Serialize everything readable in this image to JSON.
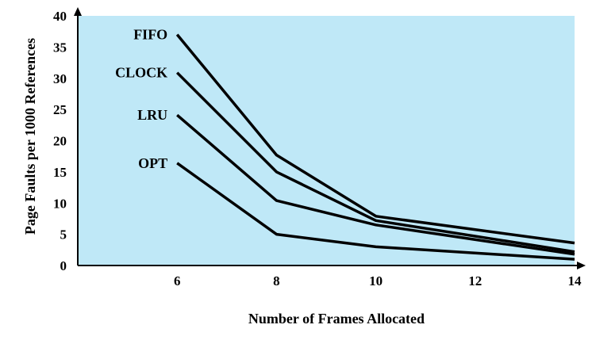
{
  "colors": {
    "plot_background": "#bfe8f7",
    "line": "#000000",
    "axis": "#000000"
  },
  "chart_data": {
    "type": "line",
    "title": "",
    "xlabel": "Number of Frames Allocated",
    "ylabel": "Page Faults per 1000 References",
    "xlim": [
      4,
      14
    ],
    "ylim": [
      0,
      40
    ],
    "xticks": [
      6,
      8,
      10,
      12,
      14
    ],
    "yticks": [
      0,
      5,
      10,
      15,
      20,
      25,
      30,
      35,
      40
    ],
    "grid": false,
    "legend": "inline labels at left end of lines",
    "x": [
      6,
      8,
      10,
      14
    ],
    "series": [
      {
        "name": "FIFO",
        "values": [
          37,
          17.7,
          7.9,
          3.6
        ]
      },
      {
        "name": "CLOCK",
        "values": [
          30.9,
          15,
          7.2,
          2.2
        ]
      },
      {
        "name": "LRU",
        "values": [
          24.1,
          10.4,
          6.5,
          1.8
        ]
      },
      {
        "name": "OPT",
        "values": [
          16.4,
          5,
          3,
          1
        ]
      }
    ]
  }
}
